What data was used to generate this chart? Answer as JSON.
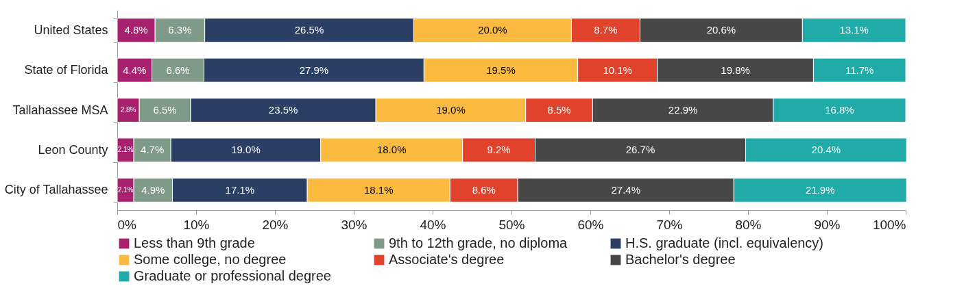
{
  "chart_data": {
    "type": "bar",
    "orientation": "horizontal",
    "stacked": true,
    "categories": [
      "United States",
      "State of Florida",
      "Tallahassee MSA",
      "Leon County",
      "City of Tallahassee"
    ],
    "series": [
      {
        "name": "Less than 9th grade",
        "color": "#a8216f",
        "values": [
          4.8,
          4.4,
          2.8,
          2.1,
          2.1
        ],
        "value_labels": [
          "4.8%",
          "4.4%",
          "2.8%",
          "2.1%",
          "2.1%"
        ]
      },
      {
        "name": "9th to 12th grade, no diploma",
        "color": "#7f9a86",
        "values": [
          6.3,
          6.6,
          6.5,
          4.7,
          4.9
        ],
        "value_labels": [
          "6.3%",
          "6.6%",
          "6.5%",
          "4.7%",
          "4.9%"
        ]
      },
      {
        "name": "H.S. graduate (incl. equivalency)",
        "color": "#2b3e64",
        "values": [
          26.5,
          27.9,
          23.5,
          19.0,
          17.1
        ],
        "value_labels": [
          "26.5%",
          "27.9%",
          "23.5%",
          "19.0%",
          "17.1%"
        ]
      },
      {
        "name": "Some college, no degree",
        "color": "#fbbb40",
        "values": [
          20.0,
          19.5,
          19.0,
          18.0,
          18.1
        ],
        "value_labels": [
          "20.0%",
          "19.5%",
          "19.0%",
          "18.0%",
          "18.1%"
        ]
      },
      {
        "name": "Associate's degree",
        "color": "#e0422b",
        "values": [
          8.7,
          10.1,
          8.5,
          9.2,
          8.6
        ],
        "value_labels": [
          "8.7%",
          "10.1%",
          "8.5%",
          "9.2%",
          "8.6%"
        ]
      },
      {
        "name": "Bachelor's degree",
        "color": "#474747",
        "values": [
          20.6,
          19.8,
          22.9,
          26.7,
          27.4
        ],
        "value_labels": [
          "20.6%",
          "19.8%",
          "22.9%",
          "26.7%",
          "27.4%"
        ]
      },
      {
        "name": "Graduate or professional degree",
        "color": "#20aaa8",
        "values": [
          13.1,
          11.7,
          16.8,
          20.4,
          21.9
        ],
        "value_labels": [
          "13.1%",
          "11.7%",
          "16.8%",
          "20.4%",
          "21.9%"
        ]
      }
    ],
    "xlim": [
      0,
      100
    ],
    "xticks": [
      {
        "value": 0,
        "label": "0%"
      },
      {
        "value": 10,
        "label": "10%"
      },
      {
        "value": 20,
        "label": "20%"
      },
      {
        "value": 30,
        "label": "30%"
      },
      {
        "value": 40,
        "label": "40%"
      },
      {
        "value": 50,
        "label": "50%"
      },
      {
        "value": 60,
        "label": "60%"
      },
      {
        "value": 70,
        "label": "70%"
      },
      {
        "value": 80,
        "label": "80%"
      },
      {
        "value": 90,
        "label": "90%"
      },
      {
        "value": 100,
        "label": "100%"
      }
    ],
    "grid": false,
    "legend": "bottom"
  }
}
